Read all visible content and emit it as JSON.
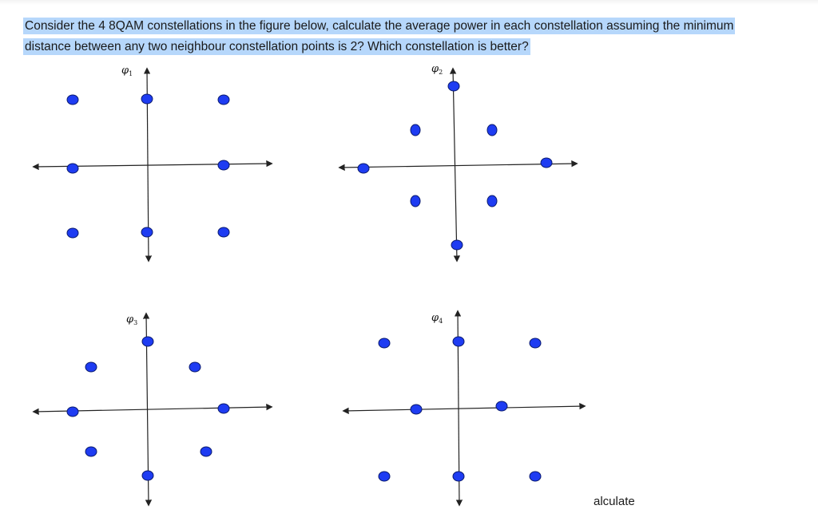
{
  "question": {
    "text": "Consider the 4 8QAM constellations in the figure below, calculate the average power in each constellation assuming the minimum distance between any two neighbour constellation points is 2? Which constellation is better?"
  },
  "colors": {
    "point_fill": "#1e3cf2",
    "point_stroke": "#0a1a6e",
    "axis": "#222222",
    "highlight": "#b6d7fb"
  },
  "constellations": [
    {
      "symbol": "φ",
      "subscript": "1"
    },
    {
      "symbol": "φ",
      "subscript": "2"
    },
    {
      "symbol": "φ",
      "subscript": "3"
    },
    {
      "symbol": "φ",
      "subscript": "4"
    }
  ],
  "stray_text": "alculate"
}
